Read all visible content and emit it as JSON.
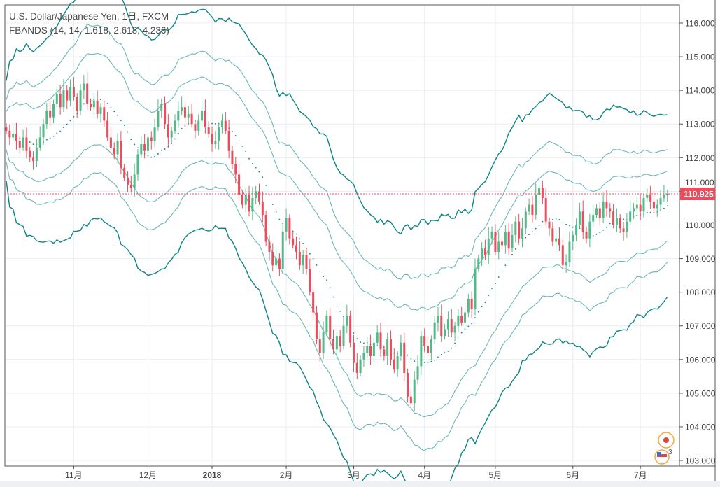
{
  "legend": {
    "symbol": "U.S. Dollar/Japanese Yen, 1日, FXCM",
    "indicator": "FBANDS (14, 14, 1.618, 2.618, 4.236)"
  },
  "last_price_label": "110.925",
  "badge_text": "3",
  "colors": {
    "up": "#53b987",
    "down": "#eb4d5c",
    "band_outer": "#0e8585",
    "band_inner": "#6bb8b8",
    "price_line": "#eb4d5c"
  },
  "chart_data": {
    "type": "candlestick",
    "title": "U.S. Dollar/Japanese Yen, 1日, FXCM",
    "ylim": [
      102.8,
      116.5
    ],
    "yticks": [
      "103.000",
      "104.000",
      "105.000",
      "106.000",
      "107.000",
      "108.000",
      "109.000",
      "110.000",
      "111.000",
      "112.000",
      "113.000",
      "114.000",
      "115.000",
      "116.000"
    ],
    "xticks": [
      {
        "label": "11月",
        "index": 20
      },
      {
        "label": "12月",
        "index": 42
      },
      {
        "label": "2018",
        "index": 61
      },
      {
        "label": "2月",
        "index": 83
      },
      {
        "label": "3月",
        "index": 103
      },
      {
        "label": "4月",
        "index": 124
      },
      {
        "label": "5月",
        "index": 145
      },
      {
        "label": "6月",
        "index": 168
      },
      {
        "label": "7月",
        "index": 188
      }
    ],
    "first_open": 112.9,
    "closes": [
      112.8,
      112.6,
      112.7,
      112.5,
      112.3,
      112.6,
      112.2,
      112.0,
      111.9,
      112.3,
      112.6,
      113.0,
      113.4,
      113.2,
      113.6,
      113.9,
      113.5,
      114.0,
      113.7,
      114.1,
      113.8,
      113.4,
      114.0,
      114.2,
      113.6,
      113.5,
      113.7,
      113.3,
      113.5,
      113.1,
      112.6,
      112.3,
      112.1,
      112.5,
      111.7,
      111.4,
      111.2,
      111.1,
      111.5,
      112.1,
      112.4,
      112.2,
      112.6,
      112.5,
      112.9,
      113.4,
      113.6,
      113.0,
      112.6,
      112.8,
      113.1,
      113.4,
      113.5,
      113.2,
      113.3,
      113.0,
      112.8,
      113.1,
      113.4,
      112.9,
      112.7,
      112.4,
      112.5,
      112.9,
      113.1,
      112.8,
      112.2,
      111.8,
      111.5,
      110.9,
      110.6,
      110.9,
      110.4,
      110.8,
      111.0,
      110.7,
      110.3,
      109.5,
      109.2,
      108.8,
      109.0,
      108.7,
      109.8,
      110.2,
      109.6,
      109.4,
      109.2,
      108.8,
      109.1,
      108.7,
      108.0,
      107.4,
      106.6,
      106.2,
      106.8,
      107.3,
      106.6,
      106.3,
      106.7,
      106.4,
      107.0,
      107.3,
      106.5,
      105.9,
      105.6,
      106.0,
      106.2,
      106.4,
      106.1,
      106.5,
      106.8,
      106.3,
      106.1,
      106.6,
      106.0,
      105.7,
      106.1,
      106.5,
      105.6,
      104.9,
      104.7,
      105.4,
      105.8,
      106.7,
      106.4,
      106.2,
      106.6,
      107.1,
      107.3,
      106.7,
      106.9,
      107.2,
      106.8,
      107.0,
      107.3,
      107.1,
      107.4,
      107.8,
      107.5,
      108.7,
      109.0,
      109.3,
      109.1,
      109.6,
      109.8,
      109.2,
      109.5,
      109.4,
      109.8,
      109.3,
      109.7,
      110.1,
      109.6,
      109.9,
      110.4,
      110.6,
      110.3,
      110.9,
      111.1,
      110.8,
      110.1,
      109.9,
      109.5,
      109.6,
      109.4,
      108.8,
      108.9,
      109.5,
      109.7,
      110.0,
      110.4,
      109.8,
      109.6,
      110.1,
      110.3,
      110.5,
      110.2,
      110.7,
      110.5,
      110.4,
      110.0,
      110.2,
      109.9,
      109.8,
      110.1,
      110.4,
      110.5,
      110.6,
      110.4,
      110.8,
      110.9,
      110.7,
      110.5,
      110.6,
      110.8,
      110.9,
      110.925
    ],
    "indicator": {
      "name": "FBANDS",
      "length": 14,
      "atr_length": 14,
      "multipliers": [
        1.618,
        2.618,
        4.236
      ]
    },
    "last_price": 110.925
  }
}
